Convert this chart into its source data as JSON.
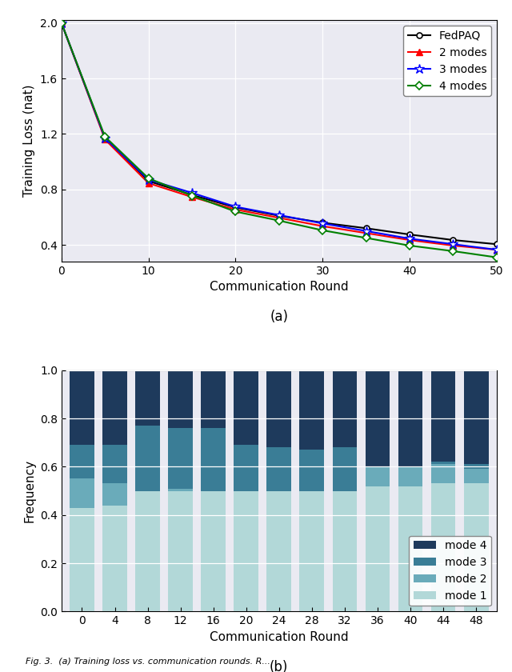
{
  "line_x": [
    0,
    5,
    10,
    15,
    20,
    25,
    30,
    35,
    40,
    45,
    50
  ],
  "fedpaq": [
    2.0,
    1.17,
    0.86,
    0.76,
    0.67,
    0.61,
    0.56,
    0.52,
    0.475,
    0.435,
    0.405
  ],
  "modes2": [
    2.0,
    1.16,
    0.845,
    0.745,
    0.655,
    0.595,
    0.535,
    0.485,
    0.435,
    0.395,
    0.365
  ],
  "modes3": [
    2.0,
    1.17,
    0.87,
    0.775,
    0.675,
    0.615,
    0.555,
    0.5,
    0.445,
    0.405,
    0.365
  ],
  "modes4": [
    2.0,
    1.18,
    0.88,
    0.755,
    0.64,
    0.575,
    0.505,
    0.45,
    0.395,
    0.355,
    0.31
  ],
  "line_colors": [
    "black",
    "red",
    "blue",
    "green"
  ],
  "line_markers": [
    "o",
    "^",
    "*",
    "D"
  ],
  "line_labels": [
    "FedPAQ",
    "2 modes",
    "3 modes",
    "4 modes"
  ],
  "line_xlabel": "Communication Round",
  "line_ylabel": "Training Loss (nat)",
  "line_xlim": [
    0,
    50
  ],
  "line_ylim": [
    0.28,
    2.02
  ],
  "line_yticks": [
    0.4,
    0.8,
    1.2,
    1.6,
    2.0
  ],
  "line_xticks": [
    0,
    10,
    20,
    30,
    40,
    50
  ],
  "bar_rounds": [
    0,
    4,
    8,
    12,
    16,
    20,
    24,
    28,
    32,
    36,
    40,
    44,
    48
  ],
  "mode1": [
    0.43,
    0.44,
    0.5,
    0.5,
    0.5,
    0.5,
    0.5,
    0.5,
    0.5,
    0.52,
    0.52,
    0.53,
    0.53
  ],
  "mode2": [
    0.12,
    0.09,
    0.0,
    0.01,
    0.0,
    0.0,
    0.0,
    0.0,
    0.0,
    0.08,
    0.08,
    0.08,
    0.06
  ],
  "mode3": [
    0.14,
    0.16,
    0.27,
    0.25,
    0.26,
    0.19,
    0.18,
    0.17,
    0.18,
    0.0,
    0.0,
    0.01,
    0.02
  ],
  "mode4": [
    0.31,
    0.31,
    0.23,
    0.24,
    0.24,
    0.31,
    0.32,
    0.33,
    0.32,
    0.4,
    0.4,
    0.38,
    0.39
  ],
  "mode_colors": [
    "#b2d8d8",
    "#6aabba",
    "#3a7d96",
    "#1e3a5c"
  ],
  "mode_labels": [
    "mode 1",
    "mode 2",
    "mode 3",
    "mode 4"
  ],
  "bar_xlabel": "Communication Round",
  "bar_ylabel": "Frequency",
  "bar_ylim": [
    0,
    1.0
  ],
  "bar_yticks": [
    0.0,
    0.2,
    0.4,
    0.6,
    0.8,
    1.0
  ],
  "subtitle_a": "(a)",
  "subtitle_b": "(b)",
  "bg_color": "#eaeaf2",
  "grid_color": "white"
}
